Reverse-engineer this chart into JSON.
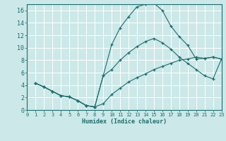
{
  "xlabel": "Humidex (Indice chaleur)",
  "xlim": [
    0,
    23
  ],
  "ylim": [
    0,
    17
  ],
  "xticks": [
    0,
    1,
    2,
    3,
    4,
    5,
    6,
    7,
    8,
    9,
    10,
    11,
    12,
    13,
    14,
    15,
    16,
    17,
    18,
    19,
    20,
    21,
    22,
    23
  ],
  "yticks": [
    0,
    2,
    4,
    6,
    8,
    10,
    12,
    14,
    16
  ],
  "bg_color": "#cce8e8",
  "line_color": "#1a6e6e",
  "grid_color": "#b0d8d8",
  "curve1_x": [
    1,
    2,
    3,
    4,
    5,
    6,
    7,
    8,
    9,
    10,
    11,
    12,
    13,
    14,
    15,
    16,
    17,
    18,
    19,
    20,
    21,
    22,
    23
  ],
  "curve1_y": [
    4.3,
    3.7,
    3.0,
    2.3,
    2.1,
    1.5,
    0.7,
    0.5,
    5.5,
    10.5,
    13.2,
    15.0,
    16.6,
    17.0,
    17.2,
    16.0,
    13.5,
    11.8,
    10.4,
    8.2,
    8.3,
    8.5,
    8.2
  ],
  "curve2_x": [
    1,
    2,
    3,
    4,
    5,
    6,
    7,
    8,
    9,
    10,
    11,
    12,
    13,
    14,
    15,
    16,
    17,
    18,
    19,
    20,
    21,
    22,
    23
  ],
  "curve2_y": [
    4.3,
    3.7,
    3.0,
    2.3,
    2.1,
    1.5,
    0.7,
    0.5,
    5.5,
    6.5,
    8.0,
    9.2,
    10.2,
    11.0,
    11.5,
    10.8,
    9.8,
    8.5,
    7.5,
    6.5,
    5.5,
    5.0,
    8.2
  ],
  "curve3_x": [
    1,
    2,
    3,
    4,
    5,
    6,
    7,
    8,
    9,
    10,
    11,
    12,
    13,
    14,
    15,
    16,
    17,
    18,
    19,
    20,
    21,
    22,
    23
  ],
  "curve3_y": [
    4.3,
    3.7,
    3.0,
    2.3,
    2.1,
    1.5,
    0.7,
    0.5,
    1.0,
    2.5,
    3.5,
    4.5,
    5.2,
    5.8,
    6.5,
    7.0,
    7.5,
    8.0,
    8.2,
    8.5,
    8.3,
    8.5,
    8.2
  ]
}
